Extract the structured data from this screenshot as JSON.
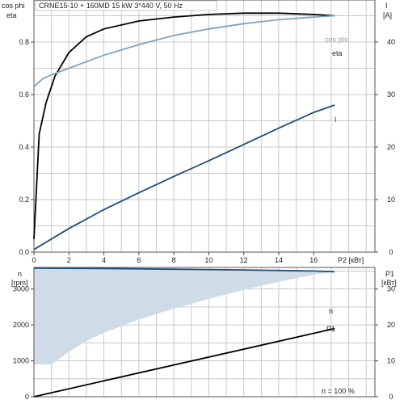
{
  "chart_data": [
    {
      "type": "line",
      "title": "CRNE15-10 + 160MD   15 kW   3*440 V, 50 Hz",
      "xlabel": "P2 [кВт]",
      "ylabel_left": [
        "cos phi",
        "eta"
      ],
      "ylabel_right": [
        "I",
        "[A]"
      ],
      "xlim": [
        0,
        19.5
      ],
      "ylim_left": [
        0,
        0.96
      ],
      "ylim_right": [
        0,
        48
      ],
      "x_ticks": [
        0,
        2,
        4,
        6,
        8,
        10,
        12,
        14,
        16
      ],
      "y_ticks_left": [
        0.0,
        0.2,
        0.4,
        0.6,
        0.8
      ],
      "y_ticks_right": [
        0,
        10,
        20,
        30,
        40
      ],
      "grid": true,
      "series": [
        {
          "name": "eta",
          "axis": "left",
          "color": "#000000",
          "x": [
            0.0,
            0.3,
            0.7,
            1.2,
            2.0,
            3.0,
            4.0,
            6.0,
            8.0,
            10.0,
            12.0,
            14.0,
            16.0,
            17.2
          ],
          "y": [
            0.05,
            0.45,
            0.57,
            0.67,
            0.76,
            0.82,
            0.85,
            0.88,
            0.895,
            0.905,
            0.91,
            0.91,
            0.905,
            0.9
          ]
        },
        {
          "name": "cos phi",
          "axis": "left",
          "color": "#7fa3c3",
          "x": [
            0.0,
            0.5,
            1.0,
            2.0,
            4.0,
            6.0,
            8.0,
            10.0,
            12.0,
            14.0,
            16.0,
            17.2
          ],
          "y": [
            0.63,
            0.66,
            0.675,
            0.7,
            0.75,
            0.79,
            0.825,
            0.85,
            0.87,
            0.885,
            0.895,
            0.9
          ]
        },
        {
          "name": "I",
          "axis": "right",
          "color": "#1f4e79",
          "x": [
            0.0,
            2.0,
            4.0,
            6.0,
            8.0,
            10.0,
            12.0,
            14.0,
            16.0,
            17.2
          ],
          "y": [
            0.5,
            4.5,
            8.1,
            11.3,
            14.4,
            17.4,
            20.5,
            23.6,
            26.6,
            28.0
          ]
        }
      ]
    },
    {
      "type": "area",
      "xlabel": "P2 [кВт]",
      "ylabel_left": [
        "n",
        "[rpm]"
      ],
      "ylabel_right": [
        "P1",
        "[кВт]"
      ],
      "xlim": [
        0,
        19.5
      ],
      "ylim_left": [
        0,
        3600
      ],
      "ylim_right": [
        0,
        36
      ],
      "x_ticks": [
        0,
        2,
        4,
        6,
        8,
        10,
        12,
        14,
        16
      ],
      "y_ticks_left": [
        0,
        1000,
        2000,
        3000
      ],
      "y_ticks_right": [
        0,
        10,
        20,
        30
      ],
      "grid": true,
      "annotation": "n = 100 %",
      "series": [
        {
          "name": "n",
          "axis": "left",
          "color": "#1f4e79",
          "x": [
            0.0,
            4.0,
            8.0,
            12.0,
            16.0,
            17.2
          ],
          "y": [
            3580,
            3570,
            3550,
            3530,
            3500,
            3480
          ]
        },
        {
          "name": "P1",
          "axis": "right",
          "color": "#000000",
          "x": [
            0.0,
            17.2
          ],
          "y": [
            0.0,
            19.0
          ]
        },
        {
          "name": "",
          "axis": "left",
          "role": "lower-boundary",
          "color": "#cfdce8",
          "x": [
            0.0,
            1.0,
            2.0,
            3.0,
            4.0,
            6.0,
            8.0,
            10.0,
            12.0,
            14.0,
            16.0,
            17.2
          ],
          "y": [
            900,
            900,
            1250,
            1550,
            1780,
            2150,
            2450,
            2720,
            2980,
            3200,
            3400,
            3480
          ]
        }
      ]
    }
  ]
}
